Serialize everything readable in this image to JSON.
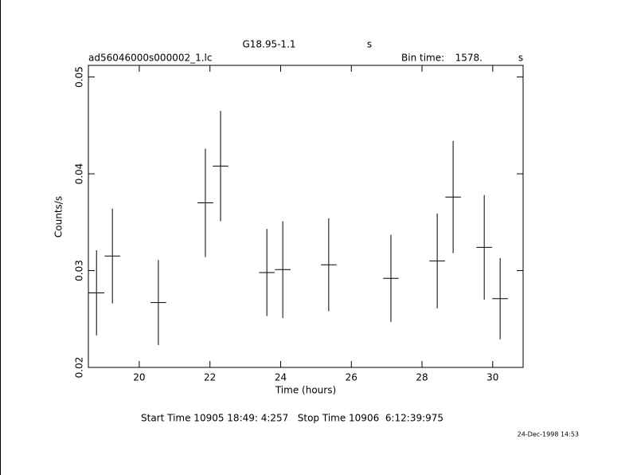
{
  "chart_data": {
    "type": "errorbar",
    "title": "G18.95-1.1",
    "title_unit": "s",
    "subtitle": "ad56046000s000002_1.lc",
    "bin_time_label": "Bin time:",
    "bin_time": "1578.",
    "bin_time_unit": "s",
    "xlabel": "Time (hours)",
    "ylabel": "Counts/s",
    "footer": "Start Time 10905 18:49: 4:257   Stop Time 10906  6:12:39:975",
    "timestamp": "24-Dec-1998 14:53",
    "x": [
      18.79,
      19.24,
      20.54,
      21.87,
      22.3,
      23.61,
      24.06,
      25.36,
      27.12,
      28.43,
      28.88,
      29.76,
      30.21
    ],
    "values": [
      0.0277,
      0.0315,
      0.0267,
      0.037,
      0.0408,
      0.0298,
      0.0301,
      0.0306,
      0.0292,
      0.031,
      0.0376,
      0.0324,
      0.0271
    ],
    "errors": [
      0.0044,
      0.0049,
      0.0044,
      0.0056,
      0.0057,
      0.0045,
      0.005,
      0.0048,
      0.0045,
      0.0049,
      0.0058,
      0.0054,
      0.0042
    ],
    "xerr": 0.22,
    "color": "#000000",
    "xlim": [
      18.56,
      30.86
    ],
    "xticks": [
      20,
      22,
      24,
      26,
      28,
      30
    ],
    "ylim": [
      0.02,
      0.0512
    ],
    "yticks": [
      0.02,
      0.03,
      0.04,
      0.05
    ]
  }
}
